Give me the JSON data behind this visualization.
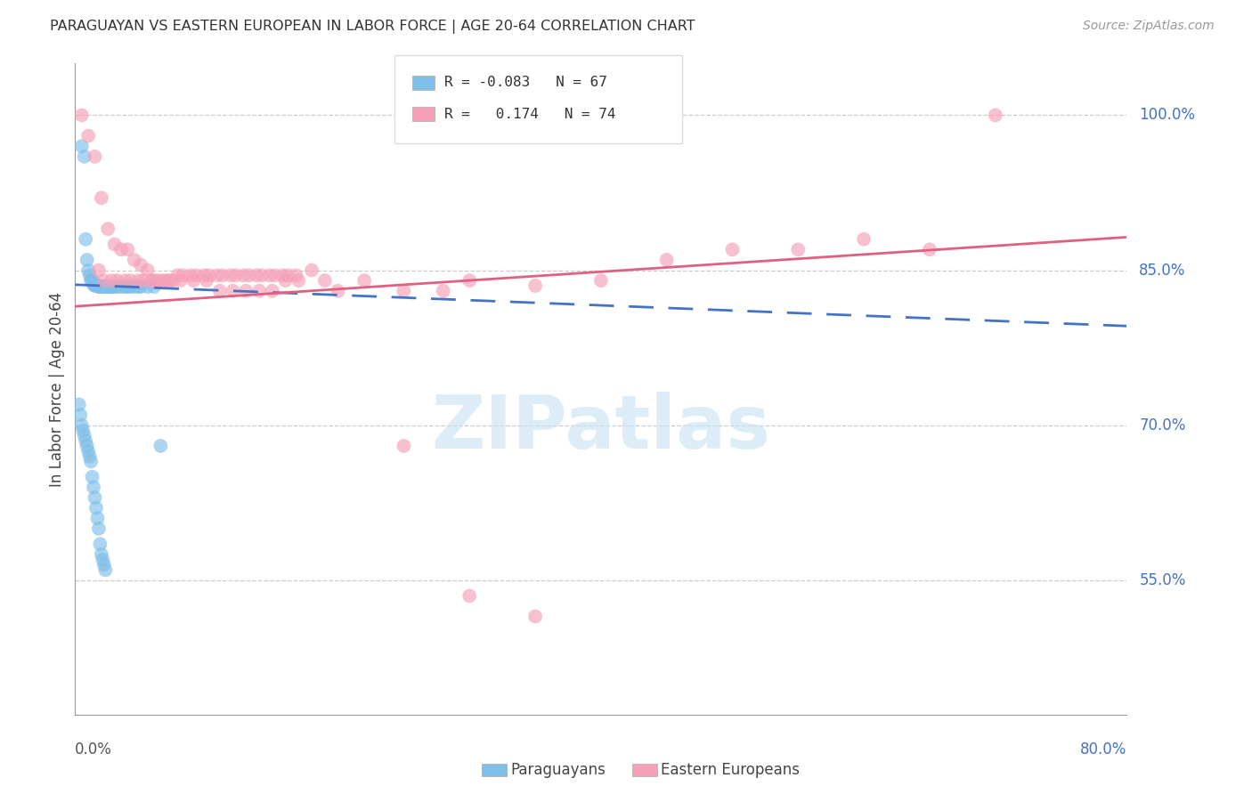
{
  "title": "PARAGUAYAN VS EASTERN EUROPEAN IN LABOR FORCE | AGE 20-64 CORRELATION CHART",
  "source": "Source: ZipAtlas.com",
  "ylabel": "In Labor Force | Age 20-64",
  "right_ytick_labels": [
    "100.0%",
    "85.0%",
    "70.0%",
    "55.0%"
  ],
  "right_ytick_values": [
    1.0,
    0.85,
    0.7,
    0.55
  ],
  "bottom_left_label": "0.0%",
  "bottom_right_label": "80.0%",
  "watermark": "ZIPatlas",
  "blue_r": -0.083,
  "blue_n": 67,
  "pink_r": 0.174,
  "pink_n": 74,
  "blue_color": "#7fbfe8",
  "pink_color": "#f5a0b8",
  "blue_line_color": "#4472c4",
  "pink_line_color": "#e06080",
  "background_color": "#ffffff",
  "xmin": 0.0,
  "xmax": 0.8,
  "ymin": 0.42,
  "ymax": 1.05,
  "blue_trend_x": [
    0.0,
    0.8
  ],
  "blue_trend_y": [
    0.836,
    0.796
  ],
  "pink_trend_x": [
    0.0,
    0.8
  ],
  "pink_trend_y": [
    0.815,
    0.882
  ],
  "blue_scatter_x": [
    0.005,
    0.007,
    0.008,
    0.009,
    0.01,
    0.011,
    0.012,
    0.013,
    0.014,
    0.014,
    0.015,
    0.015,
    0.016,
    0.016,
    0.017,
    0.017,
    0.018,
    0.018,
    0.019,
    0.019,
    0.02,
    0.02,
    0.021,
    0.021,
    0.022,
    0.022,
    0.023,
    0.023,
    0.024,
    0.025,
    0.025,
    0.026,
    0.027,
    0.028,
    0.03,
    0.032,
    0.035,
    0.038,
    0.04,
    0.042,
    0.045,
    0.048,
    0.05,
    0.055,
    0.06,
    0.003,
    0.004,
    0.005,
    0.006,
    0.007,
    0.008,
    0.009,
    0.01,
    0.011,
    0.012,
    0.013,
    0.014,
    0.015,
    0.016,
    0.017,
    0.018,
    0.019,
    0.02,
    0.021,
    0.022,
    0.023,
    0.065
  ],
  "blue_scatter_y": [
    0.97,
    0.96,
    0.88,
    0.86,
    0.85,
    0.845,
    0.84,
    0.84,
    0.838,
    0.836,
    0.836,
    0.835,
    0.835,
    0.835,
    0.835,
    0.835,
    0.835,
    0.834,
    0.834,
    0.834,
    0.834,
    0.834,
    0.834,
    0.834,
    0.834,
    0.834,
    0.834,
    0.834,
    0.834,
    0.834,
    0.834,
    0.834,
    0.834,
    0.834,
    0.834,
    0.834,
    0.834,
    0.834,
    0.834,
    0.834,
    0.834,
    0.834,
    0.834,
    0.834,
    0.834,
    0.72,
    0.71,
    0.7,
    0.695,
    0.69,
    0.685,
    0.68,
    0.675,
    0.67,
    0.665,
    0.65,
    0.64,
    0.63,
    0.62,
    0.61,
    0.6,
    0.585,
    0.575,
    0.57,
    0.565,
    0.56,
    0.68
  ],
  "pink_scatter_x": [
    0.005,
    0.01,
    0.015,
    0.02,
    0.025,
    0.03,
    0.035,
    0.04,
    0.045,
    0.05,
    0.055,
    0.06,
    0.065,
    0.07,
    0.075,
    0.08,
    0.09,
    0.1,
    0.11,
    0.12,
    0.13,
    0.14,
    0.15,
    0.16,
    0.17,
    0.18,
    0.19,
    0.2,
    0.22,
    0.25,
    0.28,
    0.3,
    0.35,
    0.4,
    0.45,
    0.5,
    0.55,
    0.6,
    0.65,
    0.7,
    0.018,
    0.022,
    0.028,
    0.032,
    0.038,
    0.042,
    0.048,
    0.052,
    0.058,
    0.062,
    0.068,
    0.072,
    0.078,
    0.082,
    0.088,
    0.092,
    0.098,
    0.102,
    0.108,
    0.112,
    0.118,
    0.122,
    0.128,
    0.132,
    0.138,
    0.142,
    0.148,
    0.152,
    0.158,
    0.162,
    0.168,
    0.25,
    0.3,
    0.35
  ],
  "pink_scatter_y": [
    1.0,
    0.98,
    0.96,
    0.92,
    0.89,
    0.875,
    0.87,
    0.87,
    0.86,
    0.855,
    0.85,
    0.84,
    0.84,
    0.84,
    0.84,
    0.84,
    0.84,
    0.84,
    0.83,
    0.83,
    0.83,
    0.83,
    0.83,
    0.84,
    0.84,
    0.85,
    0.84,
    0.83,
    0.84,
    0.83,
    0.83,
    0.84,
    0.835,
    0.84,
    0.86,
    0.87,
    0.87,
    0.88,
    0.87,
    1.0,
    0.85,
    0.84,
    0.84,
    0.84,
    0.84,
    0.84,
    0.84,
    0.84,
    0.84,
    0.84,
    0.84,
    0.84,
    0.845,
    0.845,
    0.845,
    0.845,
    0.845,
    0.845,
    0.845,
    0.845,
    0.845,
    0.845,
    0.845,
    0.845,
    0.845,
    0.845,
    0.845,
    0.845,
    0.845,
    0.845,
    0.845,
    0.68,
    0.535,
    0.515
  ]
}
